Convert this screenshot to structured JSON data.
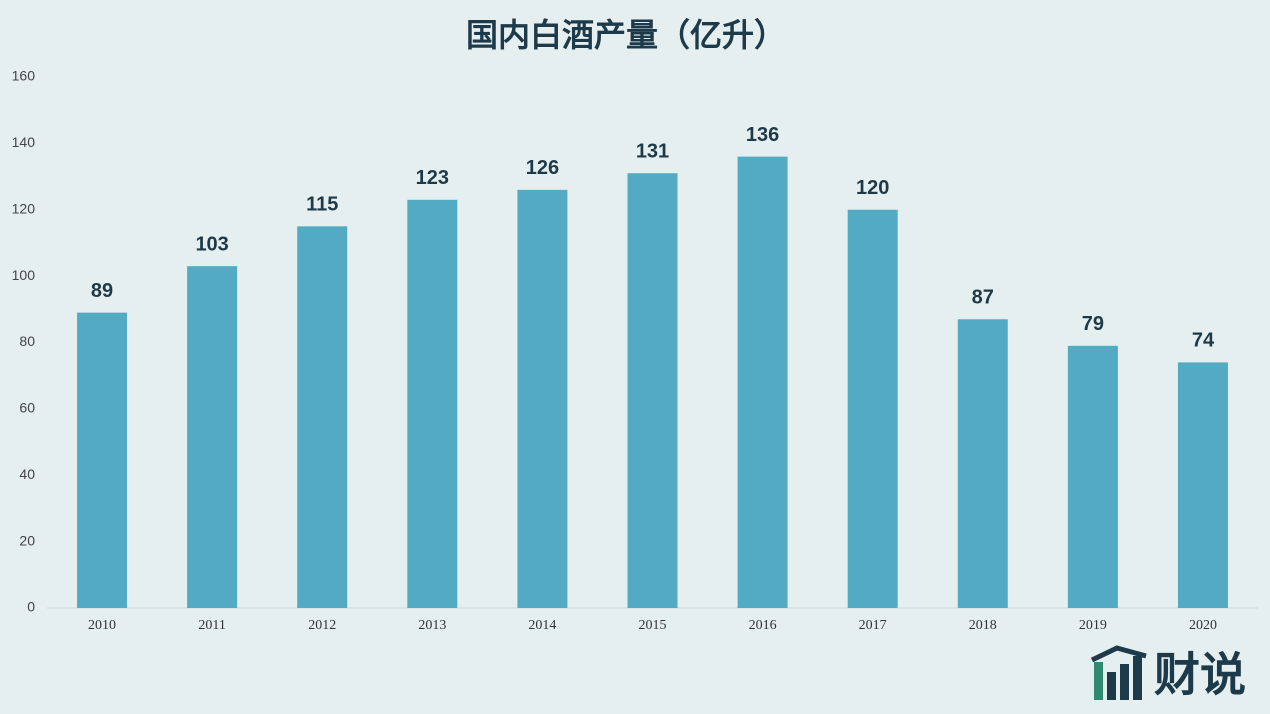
{
  "chart_data": {
    "type": "bar",
    "title": "国内白酒产量（亿升）",
    "categories": [
      "2010",
      "2011",
      "2012",
      "2013",
      "2014",
      "2015",
      "2016",
      "2017",
      "2018",
      "2019",
      "2020"
    ],
    "values": [
      89,
      103,
      115,
      123,
      126,
      131,
      136,
      120,
      87,
      79,
      74
    ],
    "color": "#52abc3",
    "ylim": [
      0,
      160
    ],
    "yticks": [
      0,
      20,
      40,
      60,
      80,
      100,
      120,
      140,
      160
    ],
    "grid": false
  },
  "logo": "财说"
}
